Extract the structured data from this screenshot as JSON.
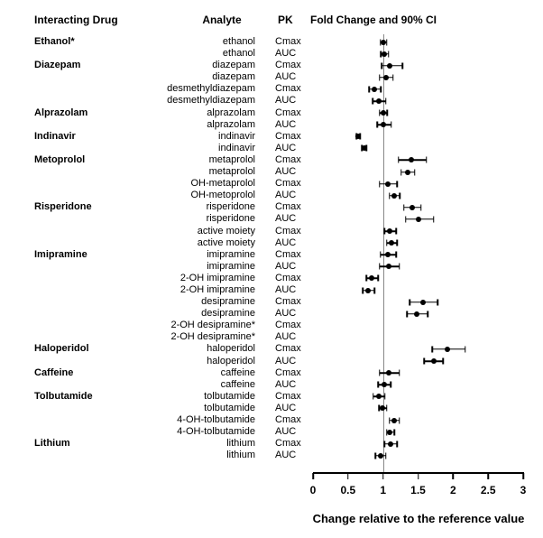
{
  "header": {
    "drug": "Interacting Drug",
    "analyte": "Analyte",
    "pk": "PK",
    "forest": "Fold Change and 90% CI"
  },
  "axis": {
    "min": 0,
    "max": 3,
    "reference": 1,
    "ticks": [
      0,
      0.5,
      1,
      1.5,
      2,
      2.5,
      3
    ],
    "tick_labels": [
      "0",
      "0.5",
      "1",
      "1.5",
      "2",
      "2.5",
      "3"
    ],
    "xlabel": "Change relative to the reference value"
  },
  "colors": {
    "marker": "#000000",
    "reference_line": "#888888",
    "text": "#000000"
  },
  "chart_data": {
    "type": "forest",
    "title": "Fold Change and 90% CI",
    "xlabel": "Change relative to the reference value",
    "xlim": [
      0,
      3
    ],
    "reference_value": 1,
    "rows": [
      {
        "drug": "Ethanol*",
        "analyte": "ethanol",
        "pk": "Cmax",
        "est": 1.0,
        "lo": 0.96,
        "hi": 1.05
      },
      {
        "drug": "",
        "analyte": "ethanol",
        "pk": "AUC",
        "est": 1.02,
        "lo": 0.97,
        "hi": 1.08
      },
      {
        "drug": "Diazepam",
        "analyte": "diazepam",
        "pk": "Cmax",
        "est": 1.1,
        "lo": 0.98,
        "hi": 1.28
      },
      {
        "drug": "",
        "analyte": "diazepam",
        "pk": "AUC",
        "est": 1.04,
        "lo": 0.95,
        "hi": 1.14
      },
      {
        "drug": "",
        "analyte": "desmethyldiazepam",
        "pk": "Cmax",
        "est": 0.88,
        "lo": 0.8,
        "hi": 0.97
      },
      {
        "drug": "",
        "analyte": "desmethyldiazepam",
        "pk": "AUC",
        "est": 0.94,
        "lo": 0.85,
        "hi": 1.04
      },
      {
        "drug": "Alprazolam",
        "analyte": "alprazolam",
        "pk": "Cmax",
        "est": 1.0,
        "lo": 0.95,
        "hi": 1.06
      },
      {
        "drug": "",
        "analyte": "alprazolam",
        "pk": "AUC",
        "est": 1.01,
        "lo": 0.92,
        "hi": 1.12
      },
      {
        "drug": "Indinavir",
        "analyte": "indinavir",
        "pk": "Cmax",
        "est": 0.64,
        "lo": 0.62,
        "hi": 0.67
      },
      {
        "drug": "",
        "analyte": "indinavir",
        "pk": "AUC",
        "est": 0.73,
        "lo": 0.7,
        "hi": 0.76
      },
      {
        "drug": "Metoprolol",
        "analyte": "metaprolol",
        "pk": "Cmax",
        "est": 1.4,
        "lo": 1.22,
        "hi": 1.62
      },
      {
        "drug": "",
        "analyte": "metaprolol",
        "pk": "AUC",
        "est": 1.35,
        "lo": 1.26,
        "hi": 1.45
      },
      {
        "drug": "",
        "analyte": "OH-metaprolol",
        "pk": "Cmax",
        "est": 1.07,
        "lo": 0.95,
        "hi": 1.2
      },
      {
        "drug": "",
        "analyte": "OH-metoprolol",
        "pk": "AUC",
        "est": 1.16,
        "lo": 1.09,
        "hi": 1.24
      },
      {
        "drug": "Risperidone",
        "analyte": "risperidone",
        "pk": "Cmax",
        "est": 1.41,
        "lo": 1.3,
        "hi": 1.54
      },
      {
        "drug": "",
        "analyte": "risperidone",
        "pk": "AUC",
        "est": 1.5,
        "lo": 1.32,
        "hi": 1.72
      },
      {
        "drug": "",
        "analyte": "active moiety",
        "pk": "Cmax",
        "est": 1.1,
        "lo": 1.02,
        "hi": 1.19
      },
      {
        "drug": "",
        "analyte": "active moiety",
        "pk": "AUC",
        "est": 1.12,
        "lo": 1.05,
        "hi": 1.2
      },
      {
        "drug": "Imipramine",
        "analyte": "imipramine",
        "pk": "Cmax",
        "est": 1.07,
        "lo": 0.96,
        "hi": 1.19
      },
      {
        "drug": "",
        "analyte": "imipramine",
        "pk": "AUC",
        "est": 1.08,
        "lo": 0.95,
        "hi": 1.23
      },
      {
        "drug": "",
        "analyte": "2-OH imipramine",
        "pk": "Cmax",
        "est": 0.84,
        "lo": 0.76,
        "hi": 0.93
      },
      {
        "drug": "",
        "analyte": "2-OH imipramine",
        "pk": "AUC",
        "est": 0.79,
        "lo": 0.71,
        "hi": 0.88
      },
      {
        "drug": "",
        "analyte": "desipramine",
        "pk": "Cmax",
        "est": 1.57,
        "lo": 1.38,
        "hi": 1.78
      },
      {
        "drug": "",
        "analyte": "desipramine",
        "pk": "AUC",
        "est": 1.48,
        "lo": 1.34,
        "hi": 1.64
      },
      {
        "drug": "",
        "analyte": "2-OH desipramine*",
        "pk": "Cmax",
        "est": null,
        "lo": null,
        "hi": null
      },
      {
        "drug": "",
        "analyte": "2-OH desipramine*",
        "pk": "AUC",
        "est": null,
        "lo": null,
        "hi": null
      },
      {
        "drug": "Haloperidol",
        "analyte": "haloperidol",
        "pk": "Cmax",
        "est": 1.92,
        "lo": 1.7,
        "hi": 2.17
      },
      {
        "drug": "",
        "analyte": "haloperidol",
        "pk": "AUC",
        "est": 1.72,
        "lo": 1.59,
        "hi": 1.86
      },
      {
        "drug": "Caffeine",
        "analyte": "caffeine",
        "pk": "Cmax",
        "est": 1.08,
        "lo": 0.95,
        "hi": 1.23
      },
      {
        "drug": "",
        "analyte": "caffeine",
        "pk": "AUC",
        "est": 1.02,
        "lo": 0.93,
        "hi": 1.11
      },
      {
        "drug": "Tolbutamide",
        "analyte": "tolbutamide",
        "pk": "Cmax",
        "est": 0.94,
        "lo": 0.86,
        "hi": 1.03
      },
      {
        "drug": "",
        "analyte": "tolbutamide",
        "pk": "AUC",
        "est": 0.99,
        "lo": 0.94,
        "hi": 1.05
      },
      {
        "drug": "",
        "analyte": "4-OH-tolbutamide",
        "pk": "Cmax",
        "est": 1.16,
        "lo": 1.09,
        "hi": 1.23
      },
      {
        "drug": "",
        "analyte": "4-OH-tolbutamide",
        "pk": "AUC",
        "est": 1.1,
        "lo": 1.05,
        "hi": 1.16
      },
      {
        "drug": "Lithium",
        "analyte": "lithium",
        "pk": "Cmax",
        "est": 1.11,
        "lo": 1.02,
        "hi": 1.2
      },
      {
        "drug": "",
        "analyte": "lithium",
        "pk": "AUC",
        "est": 0.96,
        "lo": 0.89,
        "hi": 1.04
      }
    ]
  }
}
